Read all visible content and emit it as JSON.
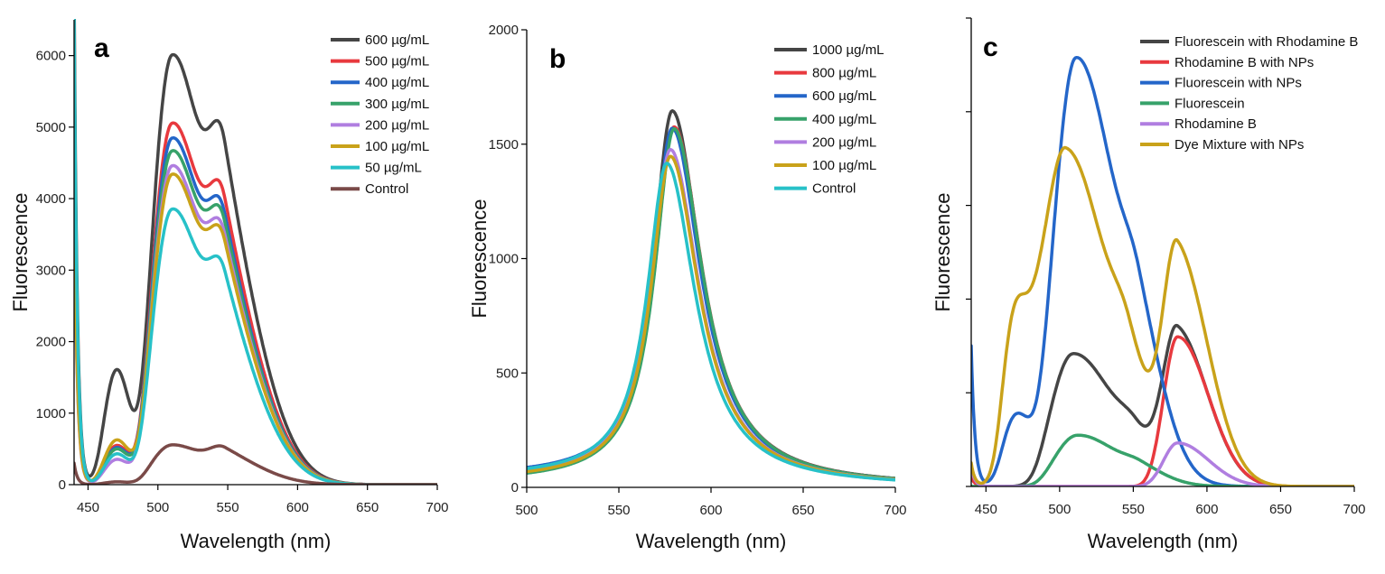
{
  "chart_data": [
    {
      "type": "line",
      "panel_label": "a",
      "xlabel": "Wavelength (nm)",
      "ylabel": "Fluorescence",
      "xlim": [
        440,
        700
      ],
      "ylim": [
        0,
        6500
      ],
      "xticks": [
        450,
        500,
        550,
        600,
        650,
        700
      ],
      "yticks": [
        0,
        1000,
        2000,
        3000,
        4000,
        5000,
        6000
      ],
      "show_y_tick_labels": true,
      "legend_position": "top-right",
      "series": [
        {
          "name": "600 µg/mL",
          "color": "#454545",
          "params": {
            "peak": 6050,
            "shoulder": 1650,
            "edge": 7000,
            "tail": 2700
          }
        },
        {
          "name": "500 µg/mL",
          "color": "#e8393e",
          "params": {
            "peak": 5090,
            "shoulder": 560,
            "edge": 4600,
            "tail": 2250
          }
        },
        {
          "name": "400 µg/mL",
          "color": "#2466c9",
          "params": {
            "peak": 4880,
            "shoulder": 530,
            "edge": 4400,
            "tail": 2100
          }
        },
        {
          "name": "300 µg/mL",
          "color": "#37a26a",
          "params": {
            "peak": 4700,
            "shoulder": 510,
            "edge": 4300,
            "tail": 2050
          }
        },
        {
          "name": "200 µg/mL",
          "color": "#b07ee0",
          "params": {
            "peak": 4490,
            "shoulder": 360,
            "edge": 4000,
            "tail": 1950
          }
        },
        {
          "name": "100 µg/mL",
          "color": "#c9a21a",
          "params": {
            "peak": 4370,
            "shoulder": 640,
            "edge": 4200,
            "tail": 1900
          }
        },
        {
          "name": "50 µg/mL",
          "color": "#27c1c8",
          "params": {
            "peak": 3880,
            "shoulder": 440,
            "edge": 6500,
            "tail": 1650
          }
        },
        {
          "name": "Control",
          "color": "#7a4a48",
          "params": {
            "peak": 560,
            "shoulder": 40,
            "edge": 300,
            "tail": 330
          }
        }
      ]
    },
    {
      "type": "line",
      "panel_label": "b",
      "xlabel": "Wavelength (nm)",
      "ylabel": "Fluorescence",
      "xlim": [
        500,
        700
      ],
      "ylim": [
        0,
        2000
      ],
      "xticks": [
        500,
        550,
        600,
        650,
        700
      ],
      "yticks": [
        0,
        500,
        1000,
        1500,
        2000
      ],
      "show_y_tick_labels": true,
      "legend_position": "top-right",
      "series": [
        {
          "name": "1000 µg/mL",
          "color": "#454545",
          "params": {
            "peak": 1650,
            "center": 579,
            "base": 38
          }
        },
        {
          "name": "800 µg/mL",
          "color": "#e8393e",
          "params": {
            "peak": 1580,
            "center": 580,
            "base": 35
          }
        },
        {
          "name": "600 µg/mL",
          "color": "#2466c9",
          "params": {
            "peak": 1575,
            "center": 579,
            "base": 46
          }
        },
        {
          "name": "400 µg/mL",
          "color": "#37a26a",
          "params": {
            "peak": 1570,
            "center": 580,
            "base": 22
          }
        },
        {
          "name": "200 µg/mL",
          "color": "#b07ee0",
          "params": {
            "peak": 1480,
            "center": 578,
            "base": 32
          }
        },
        {
          "name": "100 µg/mL",
          "color": "#c9a21a",
          "params": {
            "peak": 1450,
            "center": 578,
            "base": 30
          }
        },
        {
          "name": "Control",
          "color": "#27c1c8",
          "params": {
            "peak": 1420,
            "center": 576,
            "base": 42
          }
        }
      ]
    },
    {
      "type": "line",
      "panel_label": "c",
      "xlabel": "Wavelength (nm)",
      "ylabel": "Fluorescence",
      "xlim": [
        440,
        700
      ],
      "ylim": [
        0,
        100
      ],
      "xticks": [
        450,
        500,
        550,
        600,
        650,
        700
      ],
      "yticks": [
        0,
        20,
        40,
        60,
        80,
        100
      ],
      "show_y_tick_labels": false,
      "legend_position": "top-right",
      "series": [
        {
          "name": "Fluorescein with Rhodamine B",
          "color": "#454545",
          "params": {
            "fl": 28.5,
            "fl_center": 509,
            "rh": 31.5,
            "sh": 0,
            "edge": 3
          }
        },
        {
          "name": "Rhodamine B with NPs",
          "color": "#e8393e",
          "params": {
            "fl": 0,
            "fl_center": 509,
            "rh": 32,
            "sh": 0,
            "edge": 2
          }
        },
        {
          "name": "Fluorescein with NPs",
          "color": "#2466c9",
          "params": {
            "fl": 92,
            "fl_center": 511,
            "rh": 0,
            "sh": 16,
            "edge": 30
          }
        },
        {
          "name": "Fluorescein",
          "color": "#37a26a",
          "params": {
            "fl": 11,
            "fl_center": 512,
            "rh": 0,
            "sh": 0,
            "edge": 0
          }
        },
        {
          "name": "Rhodamine B",
          "color": "#b07ee0",
          "params": {
            "fl": 0,
            "fl_center": 509,
            "rh": 9.3,
            "sh": 0,
            "edge": 4
          }
        },
        {
          "name": "Dye Mixture with NPs",
          "color": "#c9a21a",
          "params": {
            "fl": 72,
            "fl_center": 504,
            "rh": 48,
            "sh": 40,
            "edge": 5
          }
        }
      ]
    }
  ]
}
